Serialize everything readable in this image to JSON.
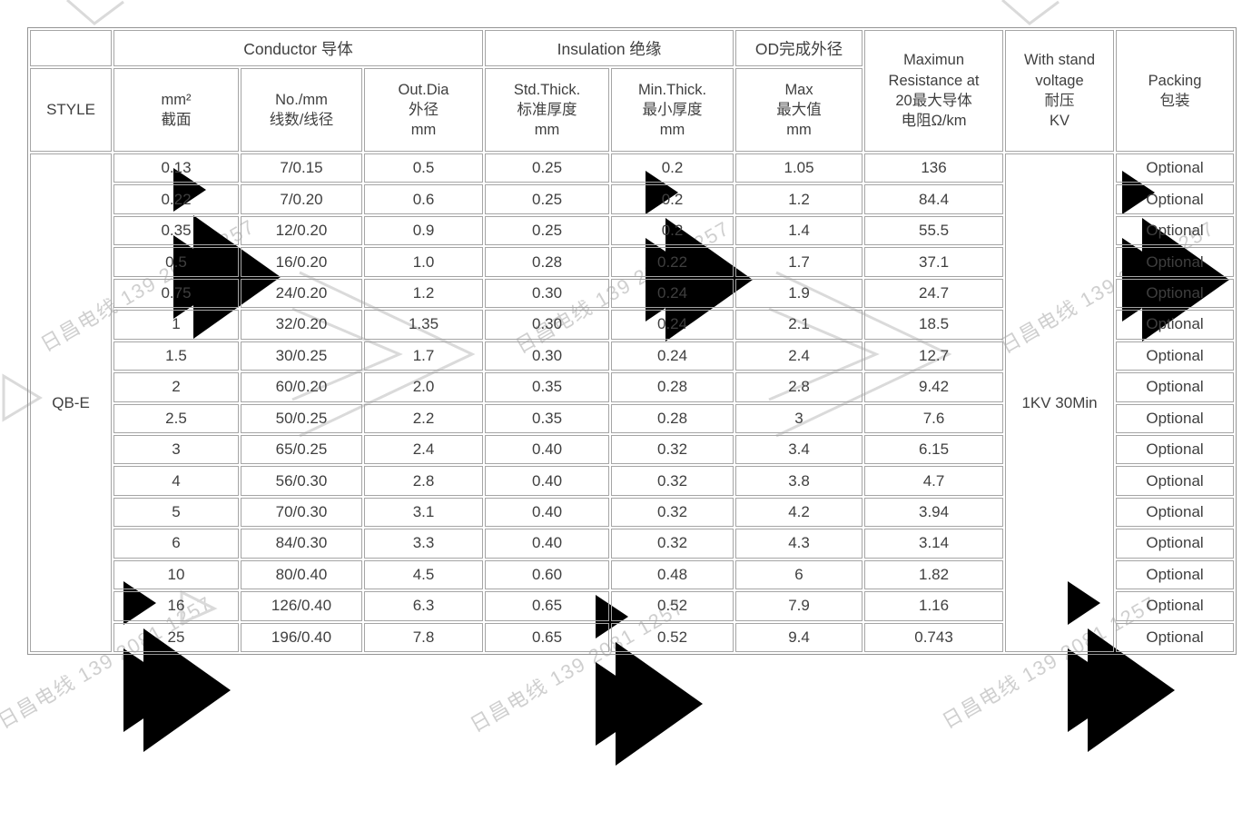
{
  "watermark": {
    "text": "日昌电线 139 2081 1257",
    "color": "#cfcfcf"
  },
  "colors": {
    "background": "#ffffff",
    "border_outer": "#949494",
    "border_cell": "#a5a5a5",
    "text": "#3f3f3f",
    "watermark": "#d9d9d9"
  },
  "table": {
    "header": {
      "style": "STYLE",
      "conductor_group": "Conductor 导体",
      "insulation_group": "Insulation 绝缘",
      "od_group": "OD完成外径",
      "sub": [
        "mm²\n截面",
        "No./mm\n线数/线径",
        "Out.Dia\n外径\nmm",
        "Std.Thick.\n标准厚度\nmm",
        "Min.Thick.\n最小厚度\nmm",
        "Max\n最大值\nmm"
      ],
      "resistance": "Maximun\nResistance at\n20最大导体\n电阻Ω/km",
      "withstand": "With stand\nvoltage\n耐压\nKV",
      "packing": "Packing\n包装"
    },
    "style_value": "QB-E",
    "withstand_value": "1KV 30Min",
    "rows": [
      [
        "0.13",
        "7/0.15",
        "0.5",
        "0.25",
        "0.2",
        "1.05",
        "136",
        "Optional"
      ],
      [
        "0.22",
        "7/0.20",
        "0.6",
        "0.25",
        "0.2",
        "1.2",
        "84.4",
        "Optional"
      ],
      [
        "0.35",
        "12/0.20",
        "0.9",
        "0.25",
        "0.2",
        "1.4",
        "55.5",
        "Optional"
      ],
      [
        "0.5",
        "16/0.20",
        "1.0",
        "0.28",
        "0.22",
        "1.7",
        "37.1",
        "Optional"
      ],
      [
        "0.75",
        "24/0.20",
        "1.2",
        "0.30",
        "0.24",
        "1.9",
        "24.7",
        "Optional"
      ],
      [
        "1",
        "32/0.20",
        "1.35",
        "0.30",
        "0.24",
        "2.1",
        "18.5",
        "Optional"
      ],
      [
        "1.5",
        "30/0.25",
        "1.7",
        "0.30",
        "0.24",
        "2.4",
        "12.7",
        "Optional"
      ],
      [
        "2",
        "60/0.20",
        "2.0",
        "0.35",
        "0.28",
        "2.8",
        "9.42",
        "Optional"
      ],
      [
        "2.5",
        "50/0.25",
        "2.2",
        "0.35",
        "0.28",
        "3",
        "7.6",
        "Optional"
      ],
      [
        "3",
        "65/0.25",
        "2.4",
        "0.40",
        "0.32",
        "3.4",
        "6.15",
        "Optional"
      ],
      [
        "4",
        "56/0.30",
        "2.8",
        "0.40",
        "0.32",
        "3.8",
        "4.7",
        "Optional"
      ],
      [
        "5",
        "70/0.30",
        "3.1",
        "0.40",
        "0.32",
        "4.2",
        "3.94",
        "Optional"
      ],
      [
        "6",
        "84/0.30",
        "3.3",
        "0.40",
        "0.32",
        "4.3",
        "3.14",
        "Optional"
      ],
      [
        "10",
        "80/0.40",
        "4.5",
        "0.60",
        "0.48",
        "6",
        "1.82",
        "Optional"
      ],
      [
        "16",
        "126/0.40",
        "6.3",
        "0.65",
        "0.52",
        "7.9",
        "1.16",
        "Optional"
      ],
      [
        "25",
        "196/0.40",
        "7.8",
        "0.65",
        "0.52",
        "9.4",
        "0.743",
        "Optional"
      ]
    ]
  }
}
